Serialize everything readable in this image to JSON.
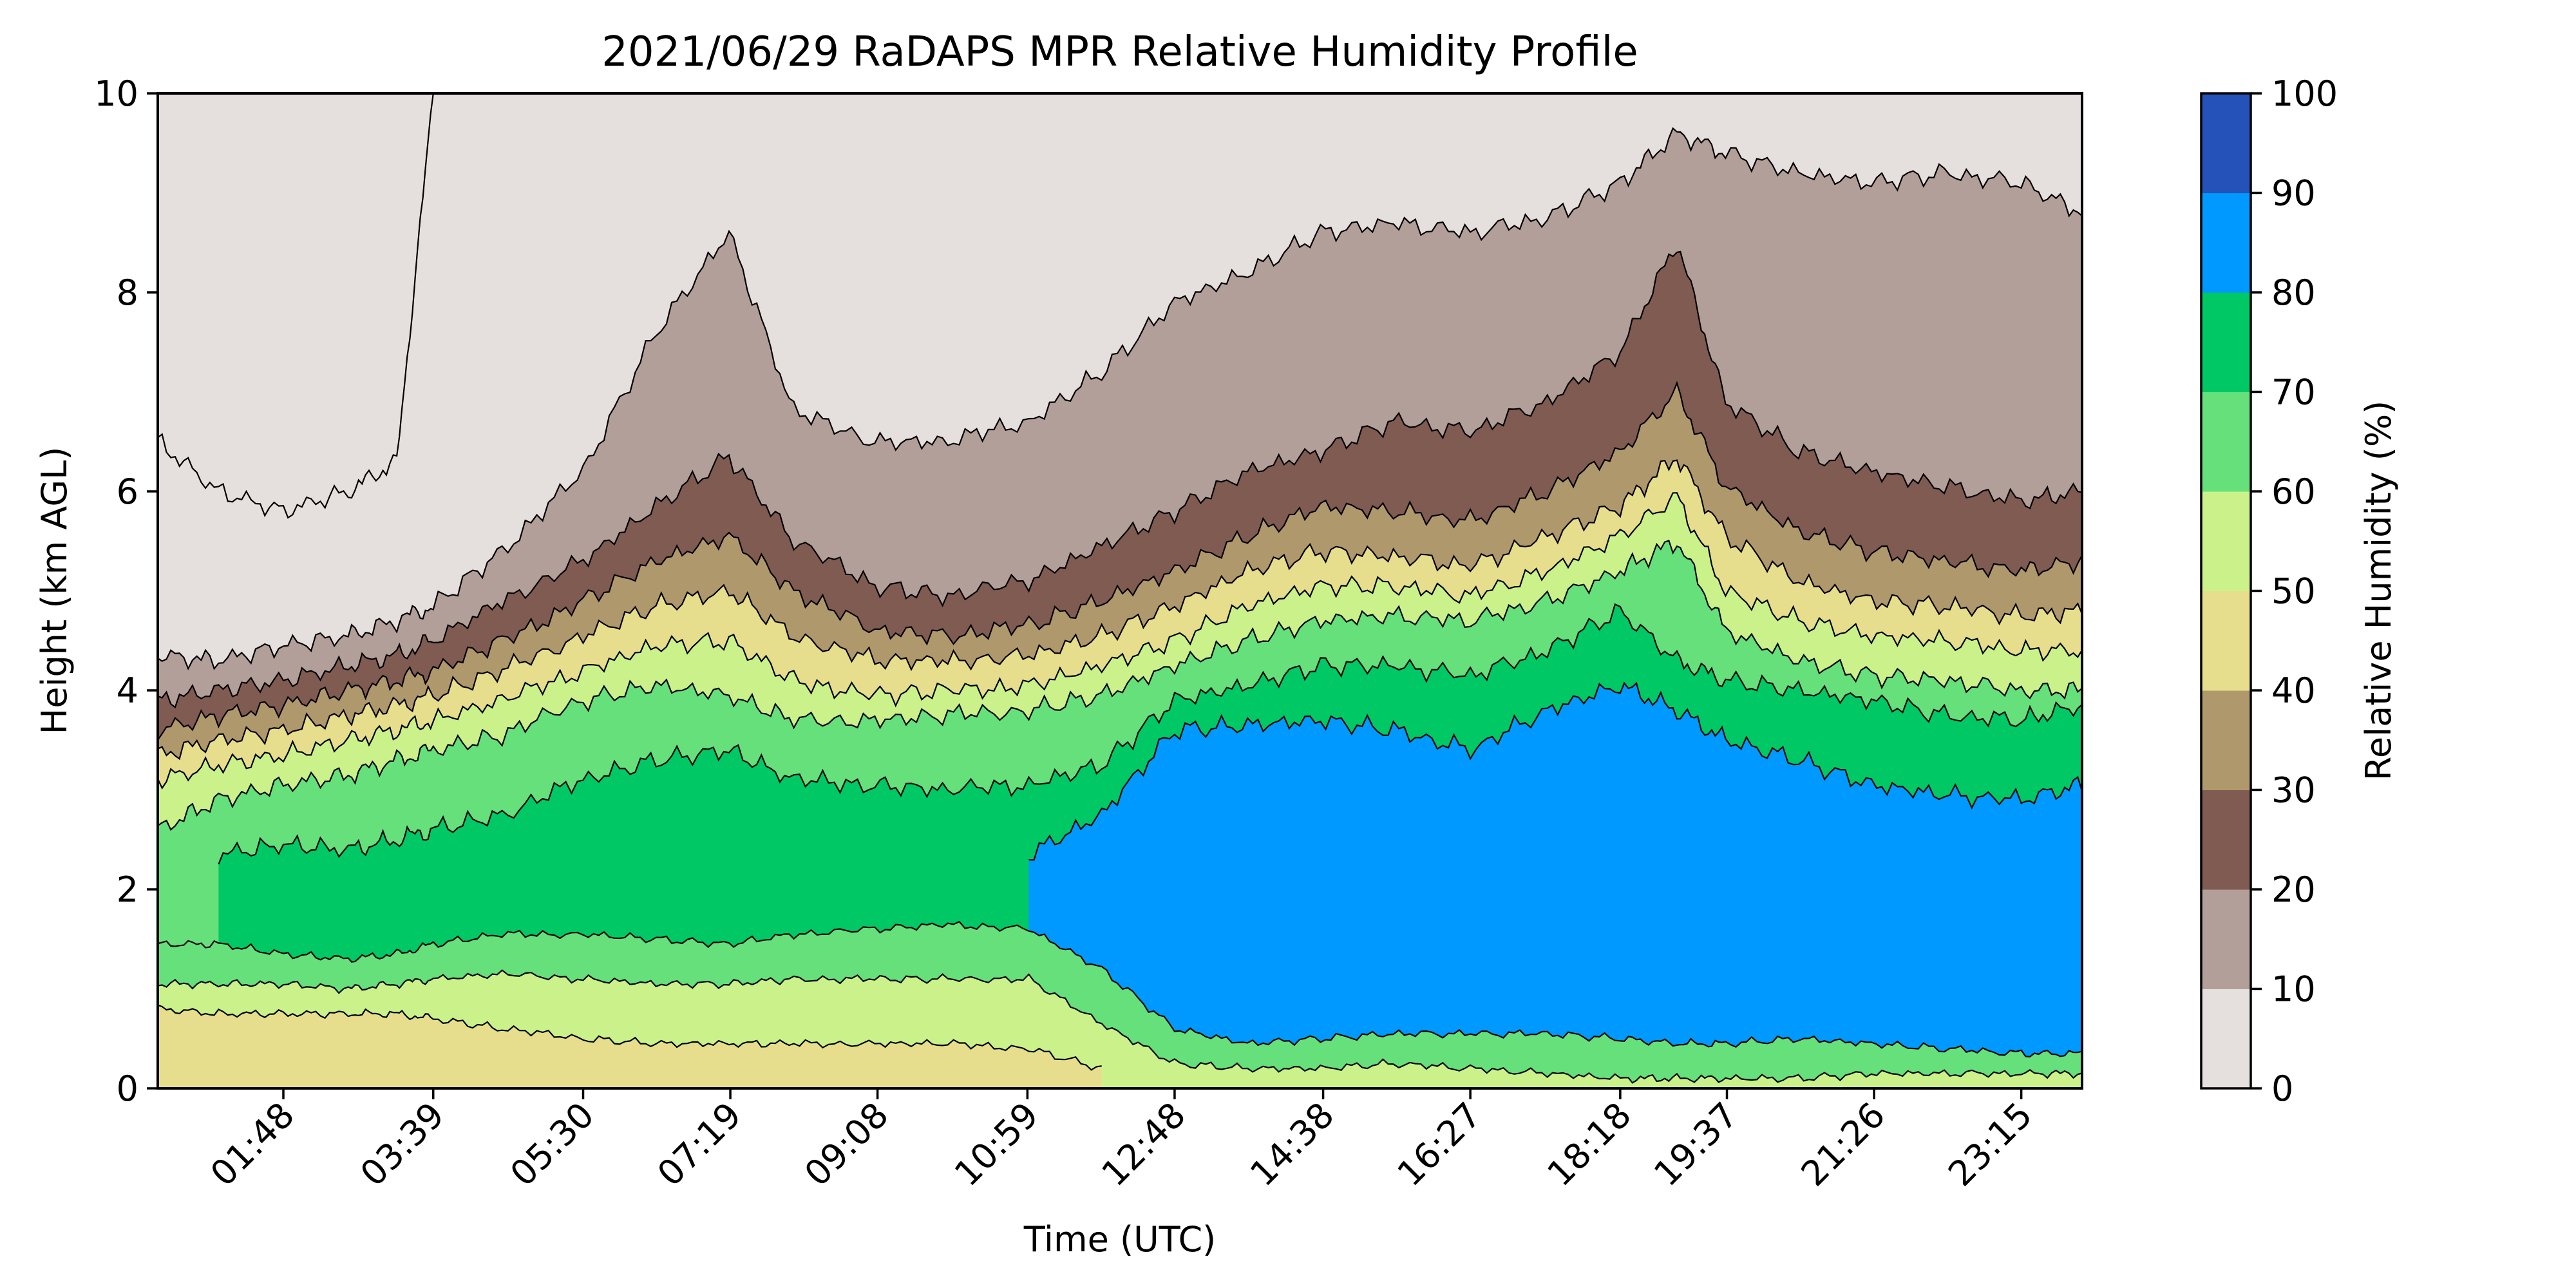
{
  "chart_data": {
    "type": "heatmap",
    "subtype": "filled-contour",
    "title": "2021/06/29 RaDAPS MPR Relative Humidity Profile",
    "xlabel": "Time (UTC)",
    "ylabel": "Height (km AGL)",
    "x_range_hours": [
      0.25,
      24.0
    ],
    "ylim": [
      0,
      10
    ],
    "x_ticks": [
      {
        "label": "01:48",
        "hour": 1.8
      },
      {
        "label": "03:39",
        "hour": 3.65
      },
      {
        "label": "05:30",
        "hour": 5.5
      },
      {
        "label": "07:19",
        "hour": 7.3167
      },
      {
        "label": "09:08",
        "hour": 9.1333
      },
      {
        "label": "10:59",
        "hour": 10.9833
      },
      {
        "label": "12:48",
        "hour": 12.8
      },
      {
        "label": "14:38",
        "hour": 14.6333
      },
      {
        "label": "16:27",
        "hour": 16.45
      },
      {
        "label": "18:18",
        "hour": 18.3
      },
      {
        "label": "19:37",
        "hour": 19.6167
      },
      {
        "label": "21:26",
        "hour": 21.4333
      },
      {
        "label": "23:15",
        "hour": 23.25
      }
    ],
    "y_ticks": [
      "0",
      "2",
      "4",
      "6",
      "8",
      "10"
    ],
    "y_tick_values": [
      0,
      2,
      4,
      6,
      8,
      10
    ],
    "colorbar": {
      "label": "Relative Humidity (%)",
      "levels": [
        0,
        10,
        20,
        30,
        40,
        50,
        60,
        70,
        80,
        90,
        100
      ],
      "tick_labels": [
        "0",
        "10",
        "20",
        "30",
        "40",
        "50",
        "60",
        "70",
        "80",
        "90",
        "100"
      ],
      "colors": [
        "#e5dfdd",
        "#b29f99",
        "#7f5b52",
        "#af986c",
        "#e6de8c",
        "#cbf28a",
        "#66e07a",
        "#00c864",
        "#0099ff",
        "#2552b8"
      ]
    },
    "time_nodes_hours": [
      0.25,
      1.0,
      1.8,
      2.6,
      3.2,
      3.65,
      4.5,
      5.5,
      6.4,
      7.3,
      8.1,
      9.1,
      10.0,
      11.0,
      11.9,
      12.8,
      13.7,
      14.6,
      15.5,
      16.45,
      17.4,
      18.3,
      19.0,
      19.6,
      20.5,
      21.4,
      22.3,
      23.25,
      24.0
    ],
    "contour_boundaries_km": [
      {
        "rh_percent": 90,
        "heights": [
          null,
          null,
          null,
          null,
          null,
          null,
          null,
          null,
          null,
          null,
          null,
          null,
          null,
          2.35,
          2.75,
          3.6,
          3.65,
          3.7,
          3.6,
          3.4,
          3.8,
          4.05,
          3.8,
          3.5,
          3.3,
          3.05,
          2.95,
          2.9,
          3.05
        ]
      },
      {
        "rh_percent": 80,
        "heights": [
          null,
          2.35,
          2.45,
          2.4,
          2.5,
          2.6,
          2.75,
          3.1,
          3.3,
          3.4,
          3.1,
          3.05,
          3.0,
          3.05,
          3.25,
          3.9,
          4.05,
          4.25,
          4.25,
          4.15,
          4.4,
          4.8,
          4.3,
          4.1,
          4.0,
          3.9,
          3.75,
          3.7,
          3.85
        ]
      },
      {
        "rh_percent": 70,
        "heights": [
          2.6,
          2.9,
          3.05,
          3.15,
          3.3,
          3.4,
          3.55,
          3.9,
          4.05,
          3.95,
          3.7,
          3.7,
          3.75,
          3.8,
          3.95,
          4.25,
          4.5,
          4.7,
          4.75,
          4.7,
          4.9,
          5.2,
          5.5,
          4.6,
          4.3,
          4.15,
          4.1,
          4.0,
          4.0
        ]
      },
      {
        "rh_percent": 60,
        "heights": [
          3.1,
          3.25,
          3.35,
          3.5,
          3.6,
          3.7,
          3.9,
          4.2,
          4.45,
          4.5,
          4.1,
          3.95,
          4.0,
          4.05,
          4.25,
          4.5,
          4.85,
          5.05,
          5.05,
          4.95,
          5.2,
          5.55,
          5.95,
          5.0,
          4.7,
          4.55,
          4.5,
          4.4,
          4.4
        ]
      },
      {
        "rh_percent": 50,
        "heights": [
          3.35,
          3.5,
          3.6,
          3.75,
          3.85,
          3.95,
          4.2,
          4.55,
          4.85,
          5.0,
          4.55,
          4.3,
          4.3,
          4.35,
          4.55,
          4.85,
          5.2,
          5.4,
          5.35,
          5.25,
          5.55,
          5.85,
          6.35,
          5.55,
          5.1,
          4.9,
          4.85,
          4.75,
          4.8
        ]
      },
      {
        "rh_percent": 40,
        "heights": [
          3.6,
          3.75,
          3.85,
          4.0,
          4.1,
          4.2,
          4.5,
          4.9,
          5.3,
          5.55,
          5.0,
          4.6,
          4.55,
          4.65,
          4.9,
          5.2,
          5.55,
          5.85,
          5.8,
          5.7,
          6.0,
          6.4,
          7.0,
          6.05,
          5.6,
          5.4,
          5.3,
          5.2,
          5.3
        ]
      },
      {
        "rh_percent": 30,
        "heights": [
          3.9,
          4.0,
          4.1,
          4.25,
          4.35,
          4.5,
          4.9,
          5.3,
          5.85,
          6.35,
          5.5,
          5.05,
          4.95,
          5.1,
          5.45,
          5.8,
          6.2,
          6.4,
          6.7,
          6.6,
          6.9,
          7.4,
          8.5,
          6.9,
          6.4,
          6.2,
          6.05,
          5.9,
          6.0
        ]
      },
      {
        "rh_percent": 20,
        "heights": [
          4.35,
          4.3,
          4.45,
          4.55,
          4.7,
          4.85,
          5.4,
          6.2,
          7.6,
          8.6,
          6.8,
          6.5,
          6.5,
          6.7,
          7.2,
          7.9,
          8.2,
          8.6,
          8.7,
          8.6,
          8.75,
          9.1,
          9.6,
          9.4,
          9.2,
          9.1,
          9.2,
          9.1,
          8.8
        ]
      },
      {
        "rh_percent": 10,
        "heights": [
          6.5,
          6.0,
          5.8,
          6.0,
          6.3,
          10.0,
          10.0,
          10.0,
          10.0,
          10.0,
          10.0,
          10.0,
          10.0,
          10.0,
          10.0,
          10.0,
          10.0,
          10.0,
          10.0,
          10.0,
          10.0,
          10.0,
          10.0,
          10.0,
          10.0,
          10.0,
          10.0,
          10.0,
          10.0
        ]
      }
    ],
    "near_surface_boundaries_km": [
      {
        "rh_percent": 70,
        "heights": [
          1.45,
          1.45,
          1.35,
          1.3,
          1.35,
          1.45,
          1.55,
          1.55,
          1.5,
          1.45,
          1.55,
          1.6,
          1.65,
          1.6,
          1.2,
          0.6,
          0.45,
          0.5,
          0.55,
          0.55,
          0.55,
          0.5,
          0.45,
          0.45,
          0.5,
          0.45,
          0.4,
          0.35,
          0.35
        ]
      },
      {
        "rh_percent": 60,
        "heights": [
          1.05,
          1.05,
          1.05,
          1.0,
          1.05,
          1.1,
          1.15,
          1.1,
          1.05,
          1.05,
          1.1,
          1.1,
          1.1,
          1.1,
          0.65,
          0.25,
          0.2,
          0.2,
          0.25,
          0.2,
          0.15,
          0.1,
          0.1,
          0.1,
          0.1,
          0.15,
          0.15,
          0.15,
          0.15
        ]
      },
      {
        "rh_percent": 50,
        "heights": [
          0.8,
          0.75,
          0.75,
          0.75,
          0.75,
          0.7,
          0.6,
          0.5,
          0.45,
          0.45,
          0.45,
          0.45,
          0.45,
          0.4,
          0.2,
          null,
          null,
          null,
          null,
          null,
          null,
          null,
          null,
          null,
          null,
          null,
          null,
          null,
          null
        ]
      }
    ]
  }
}
